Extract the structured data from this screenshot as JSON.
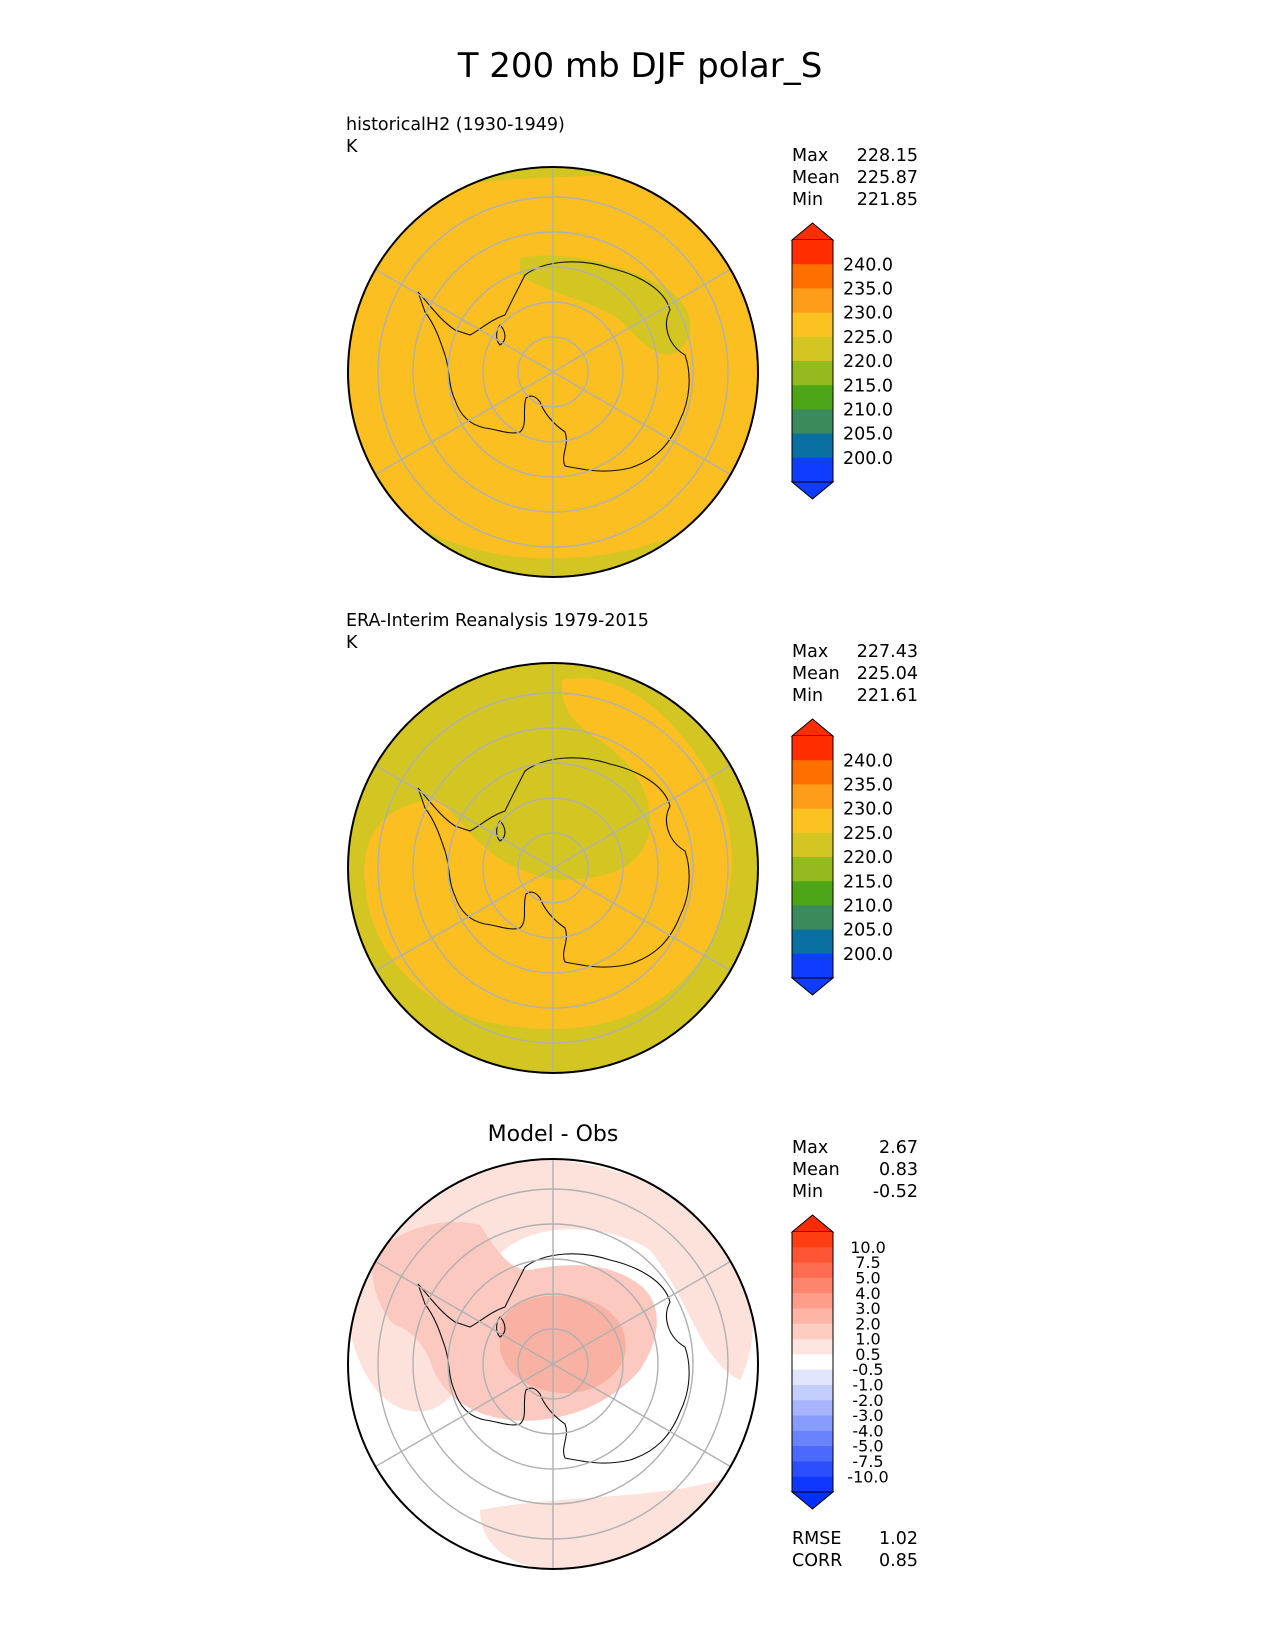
{
  "title": "T 200 mb DJF polar_S",
  "panels": [
    {
      "label": "historicalH2 (1930-1949)",
      "units": "K",
      "stats": [
        {
          "label": "Max",
          "value": "228.15"
        },
        {
          "label": "Mean",
          "value": "225.87"
        },
        {
          "label": "Min",
          "value": "221.85"
        }
      ],
      "colorbar": {
        "ticks": [
          "240.0",
          "235.0",
          "230.0",
          "225.0",
          "220.0",
          "215.0",
          "210.0",
          "205.0",
          "200.0"
        ],
        "colors": [
          "#ff2d00",
          "#ff6f00",
          "#ff9d1b",
          "#fcc221",
          "#d3c622",
          "#94ba1e",
          "#4ca617",
          "#3a8a5c",
          "#0a6fa1",
          "#0f3dfe"
        ],
        "top_color": "#ff2d00",
        "bottom_color": "#0f3dfe"
      },
      "map_colors": {
        "main": "#fbbf22",
        "secondary": "#d3c622"
      }
    },
    {
      "label": "ERA-Interim Reanalysis 1979-2015",
      "units": "K",
      "stats": [
        {
          "label": "Max",
          "value": "227.43"
        },
        {
          "label": "Mean",
          "value": "225.04"
        },
        {
          "label": "Min",
          "value": "221.61"
        }
      ],
      "colorbar": {
        "ticks": [
          "240.0",
          "235.0",
          "230.0",
          "225.0",
          "220.0",
          "215.0",
          "210.0",
          "205.0",
          "200.0"
        ],
        "colors": [
          "#ff2d00",
          "#ff6f00",
          "#ff9d1b",
          "#fcc221",
          "#d3c622",
          "#94ba1e",
          "#4ca617",
          "#3a8a5c",
          "#0a6fa1",
          "#0f3dfe"
        ],
        "top_color": "#ff2d00",
        "bottom_color": "#0f3dfe"
      },
      "map_colors": {
        "main": "#d3c622",
        "secondary": "#fbbf22"
      }
    },
    {
      "title": "Model - Obs",
      "stats": [
        {
          "label": "Max",
          "value": "2.67"
        },
        {
          "label": "Mean",
          "value": "0.83"
        },
        {
          "label": "Min",
          "value": "-0.52"
        }
      ],
      "colorbar": {
        "ticks": [
          "10.0",
          "7.5",
          "5.0",
          "4.0",
          "3.0",
          "2.0",
          "1.0",
          "0.5",
          "-0.5",
          "-1.0",
          "-2.0",
          "-3.0",
          "-4.0",
          "-5.0",
          "-7.5",
          "-10.0"
        ],
        "colors": [
          "#fe3d12",
          "#fe5535",
          "#fe6d52",
          "#fe856d",
          "#fe9d8a",
          "#feb5a6",
          "#fecdc2",
          "#fee4df",
          "#ffffff",
          "#e2e6fc",
          "#c4cefd",
          "#a6b5fd",
          "#879cfd",
          "#6983fe",
          "#4a69fe",
          "#2c4ffe",
          "#0e36fe"
        ],
        "top_color": "#fe2a00",
        "bottom_color": "#0030ff"
      },
      "map_colors": {
        "base": "#ffffff",
        "light": "#fde1db",
        "mid": "#fbc9bf",
        "strong": "#f9b1a3"
      },
      "extra_stats": [
        {
          "label": "RMSE",
          "value": "1.02"
        },
        {
          "label": "CORR",
          "value": "0.85"
        }
      ]
    }
  ]
}
